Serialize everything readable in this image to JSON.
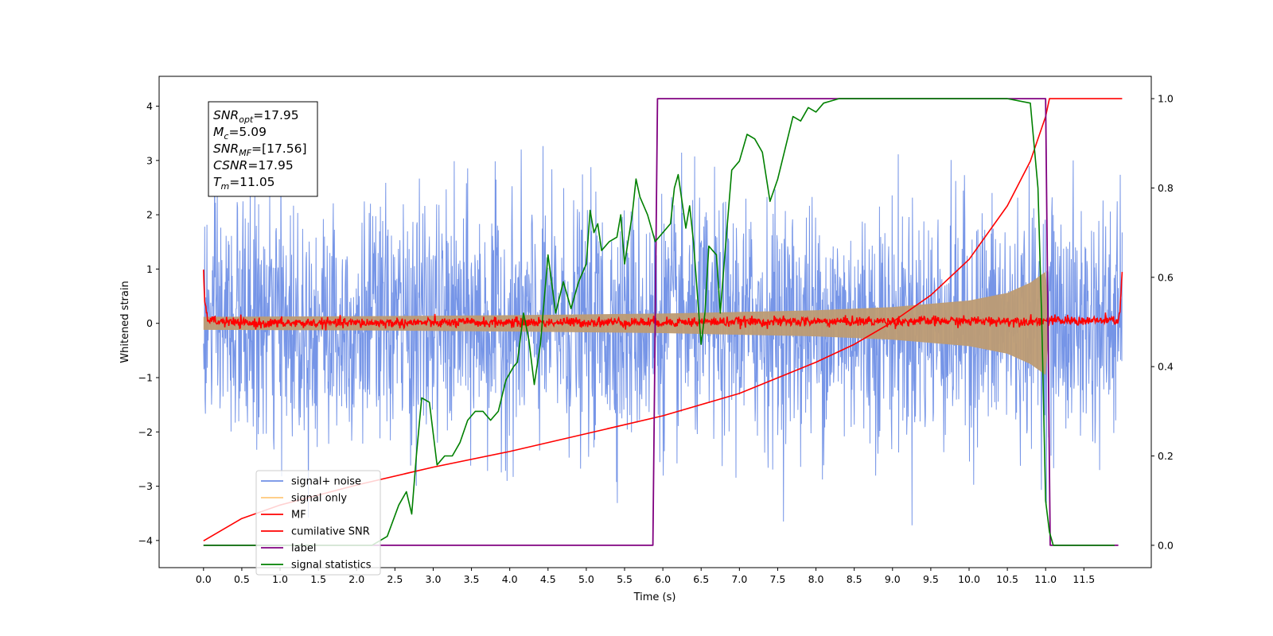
{
  "chart_data": {
    "type": "line",
    "xlabel": "Time (s)",
    "ylabel_left": "Whitened strain",
    "ylabel_right": "",
    "xlim": [
      -0.58,
      12.38
    ],
    "ylim_left": [
      -4.5,
      4.55
    ],
    "ylim_right": [
      -0.05,
      1.05
    ],
    "x_ticks": [
      "0.0",
      "0.5",
      "1.0",
      "1.5",
      "2.0",
      "2.5",
      "3.0",
      "3.5",
      "4.0",
      "4.5",
      "5.0",
      "5.5",
      "6.0",
      "6.5",
      "7.0",
      "7.5",
      "8.0",
      "8.5",
      "9.0",
      "9.5",
      "10.0",
      "10.5",
      "11.0",
      "11.5"
    ],
    "y_ticks_left": [
      "4",
      "3",
      "2",
      "1",
      "0",
      "−1",
      "−2",
      "−3",
      "−4"
    ],
    "y_ticks_right": [
      "1.0",
      "0.8",
      "0.6",
      "0.4",
      "0.2",
      "0.0"
    ],
    "grid": false,
    "legend_position": "lower-left",
    "legend": [
      {
        "label": "signal+ noise",
        "color": "#6f8fe6"
      },
      {
        "label": "signal only",
        "color": "#ffc87a"
      },
      {
        "label": "MF",
        "color": "#ff0000"
      },
      {
        "label": "cumilative SNR",
        "color": "#ff0000"
      },
      {
        "label": "label",
        "color": "#800080"
      },
      {
        "label": "signal statistics",
        "color": "#008000"
      }
    ],
    "annotations": [
      {
        "sym": "SNR",
        "sub": "opt",
        "value": "=17.95"
      },
      {
        "sym": "M",
        "sub": "c",
        "value": "=5.09"
      },
      {
        "sym": "SNR",
        "sub": "MF",
        "value": "=[17.56]"
      },
      {
        "sym": "CSNR",
        "sub": "",
        "value": "=17.95"
      },
      {
        "sym": "T",
        "sub": "m",
        "value": "=11.05"
      }
    ],
    "series": [
      {
        "name": "signal+ noise",
        "axis": "left",
        "color": "#6f8fe6",
        "noise_band": {
          "x_start": 0.0,
          "x_end": 12.0,
          "typical_range": [
            -2.4,
            2.6
          ],
          "peak_range": [
            -3.9,
            4.15
          ]
        }
      },
      {
        "name": "signal only",
        "axis": "left",
        "color": "#ffc87a",
        "envelope": {
          "x": [
            0.0,
            2.0,
            4.0,
            6.0,
            8.0,
            9.0,
            10.0,
            10.5,
            10.8,
            11.0,
            11.05
          ],
          "amplitude": [
            0.12,
            0.13,
            0.15,
            0.18,
            0.24,
            0.3,
            0.42,
            0.56,
            0.75,
            0.95,
            0.0
          ]
        }
      },
      {
        "name": "MF",
        "axis": "left",
        "color": "#ff0000",
        "x": [
          0.0,
          0.02,
          0.05,
          0.1,
          0.5,
          11.95,
          11.98,
          12.0
        ],
        "y": [
          1.0,
          0.3,
          0.1,
          0.05,
          0.0,
          0.05,
          0.4,
          0.92
        ]
      },
      {
        "name": "cumilative SNR",
        "axis": "right",
        "color": "#ff0000",
        "x": [
          0.0,
          0.5,
          1.0,
          2.0,
          3.0,
          4.0,
          5.0,
          6.0,
          7.0,
          8.0,
          8.5,
          9.0,
          9.5,
          10.0,
          10.5,
          10.8,
          11.0,
          11.05,
          11.5,
          12.0
        ],
        "y": [
          0.01,
          0.06,
          0.09,
          0.135,
          0.175,
          0.21,
          0.25,
          0.29,
          0.34,
          0.41,
          0.45,
          0.5,
          0.56,
          0.64,
          0.76,
          0.86,
          0.96,
          1.0,
          1.0,
          1.0
        ]
      },
      {
        "name": "label",
        "axis": "right",
        "color": "#800080",
        "x": [
          0.0,
          5.87,
          5.93,
          11.0,
          11.06,
          11.95
        ],
        "y": [
          0.0,
          0.0,
          1.0,
          1.0,
          0.0,
          0.0
        ]
      },
      {
        "name": "signal statistics",
        "axis": "right",
        "color": "#008000",
        "x": [
          0.0,
          0.3,
          0.6,
          1.0,
          1.5,
          1.9,
          2.2,
          2.4,
          2.55,
          2.65,
          2.72,
          2.78,
          2.85,
          2.95,
          3.05,
          3.15,
          3.25,
          3.35,
          3.45,
          3.55,
          3.65,
          3.75,
          3.85,
          3.95,
          4.05,
          4.1,
          4.18,
          4.25,
          4.32,
          4.4,
          4.5,
          4.6,
          4.7,
          4.8,
          4.9,
          5.0,
          5.05,
          5.1,
          5.15,
          5.2,
          5.3,
          5.4,
          5.45,
          5.5,
          5.6,
          5.65,
          5.7,
          5.8,
          5.9,
          6.0,
          6.1,
          6.15,
          6.2,
          6.3,
          6.35,
          6.4,
          6.5,
          6.55,
          6.6,
          6.7,
          6.75,
          6.8,
          6.9,
          7.0,
          7.1,
          7.2,
          7.3,
          7.4,
          7.5,
          7.6,
          7.7,
          7.8,
          7.9,
          8.0,
          8.1,
          8.3,
          8.6,
          9.0,
          9.5,
          10.0,
          10.5,
          10.8,
          10.9,
          10.95,
          11.0,
          11.05,
          11.1,
          11.5,
          11.9
        ],
        "y": [
          0.0,
          0.0,
          0.0,
          0.0,
          0.0,
          0.0,
          0.0,
          0.02,
          0.09,
          0.12,
          0.07,
          0.2,
          0.33,
          0.32,
          0.18,
          0.2,
          0.2,
          0.23,
          0.28,
          0.3,
          0.3,
          0.28,
          0.3,
          0.37,
          0.4,
          0.41,
          0.52,
          0.46,
          0.36,
          0.45,
          0.65,
          0.52,
          0.59,
          0.53,
          0.59,
          0.63,
          0.75,
          0.7,
          0.72,
          0.66,
          0.68,
          0.69,
          0.74,
          0.63,
          0.74,
          0.82,
          0.78,
          0.74,
          0.68,
          0.7,
          0.72,
          0.8,
          0.83,
          0.71,
          0.76,
          0.68,
          0.45,
          0.52,
          0.67,
          0.65,
          0.52,
          0.63,
          0.84,
          0.86,
          0.92,
          0.91,
          0.88,
          0.77,
          0.82,
          0.89,
          0.96,
          0.95,
          0.98,
          0.97,
          0.99,
          1.0,
          1.0,
          1.0,
          1.0,
          1.0,
          1.0,
          0.99,
          0.8,
          0.5,
          0.1,
          0.03,
          0.0,
          0.0,
          0.0
        ]
      }
    ]
  }
}
